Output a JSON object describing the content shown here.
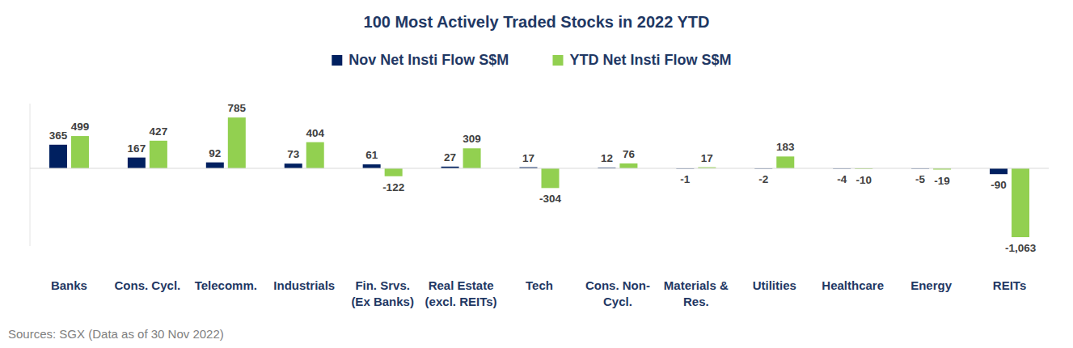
{
  "chart_data": {
    "type": "bar",
    "title": "100 Most Actively Traded Stocks in 2022 YTD",
    "source": "Sources: SGX (Data as of 30 Nov 2022)",
    "categories": [
      "Banks",
      "Cons. Cycl.",
      "Telecomm.",
      "Industrials",
      "Fin. Srvs.\n(Ex Banks)",
      "Real Estate\n(excl. REITs)",
      "Tech",
      "Cons. Non-\nCycl.",
      "Materials &\nRes.",
      "Utilities",
      "Healthcare",
      "Energy",
      "REITs"
    ],
    "series": [
      {
        "name": "Nov Net Insti Flow S$M",
        "color": "#002060",
        "values": [
          365,
          167,
          92,
          73,
          61,
          27,
          17,
          12,
          -1,
          -2,
          -4,
          -5,
          -90
        ]
      },
      {
        "name": "YTD Net Insti Flow S$M",
        "color": "#92d050",
        "values": [
          499,
          427,
          785,
          404,
          -122,
          309,
          -304,
          76,
          17,
          183,
          -10,
          -19,
          -1063
        ],
        "value_labels": [
          "499",
          "427",
          "785",
          "404",
          "-122",
          "309",
          "-304",
          "76",
          "17",
          "183",
          "-10",
          "-19",
          "-1,063"
        ]
      }
    ],
    "ylim": [
      -1200,
      1000
    ],
    "yticks": [
      0
    ],
    "grid": false,
    "legend": "top",
    "data_labels": true,
    "tick_labels": "x"
  }
}
